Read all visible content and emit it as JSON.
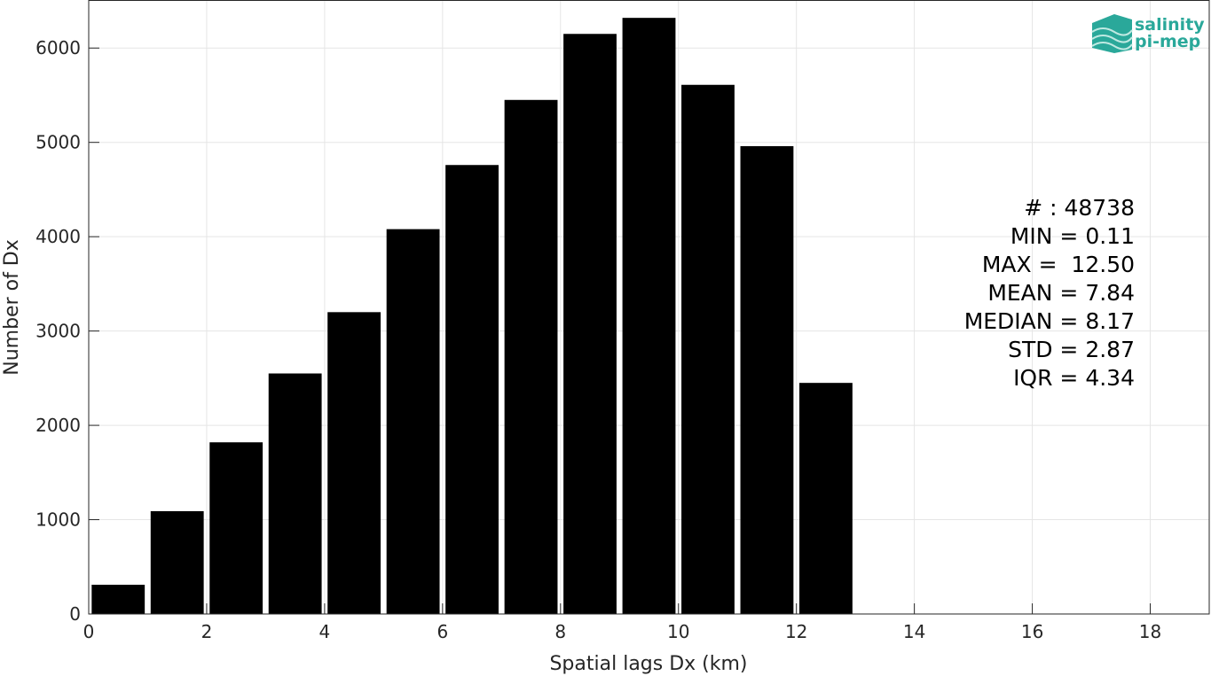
{
  "chart_data": {
    "type": "bar",
    "bin_width": 0.9,
    "x": [
      0.5,
      1.5,
      2.5,
      3.5,
      4.5,
      5.5,
      6.5,
      7.5,
      8.5,
      9.5,
      10.5,
      11.5,
      12.5
    ],
    "values": [
      310,
      1090,
      1820,
      2550,
      3200,
      4080,
      4760,
      5450,
      6150,
      6320,
      5610,
      4960,
      2450
    ],
    "xlabel": "Spatial lags Dx (km)",
    "ylabel": "Number of Dx",
    "xlim": [
      0,
      19
    ],
    "ylim": [
      0,
      6500
    ],
    "xticks": [
      0,
      2,
      4,
      6,
      8,
      10,
      12,
      14,
      16,
      18
    ],
    "yticks": [
      0,
      1000,
      2000,
      3000,
      4000,
      5000,
      6000
    ],
    "grid": true,
    "bar_color": "#000000",
    "annotations": [
      "# : 48738",
      "MIN = 0.11",
      "MAX =  12.50",
      "MEAN = 7.84",
      "MEDIAN = 8.17",
      "STD = 2.87",
      "IQR = 4.34"
    ]
  },
  "logo": {
    "line1": "salinity",
    "line2": "pi-mep",
    "color": "#2aa89a"
  }
}
